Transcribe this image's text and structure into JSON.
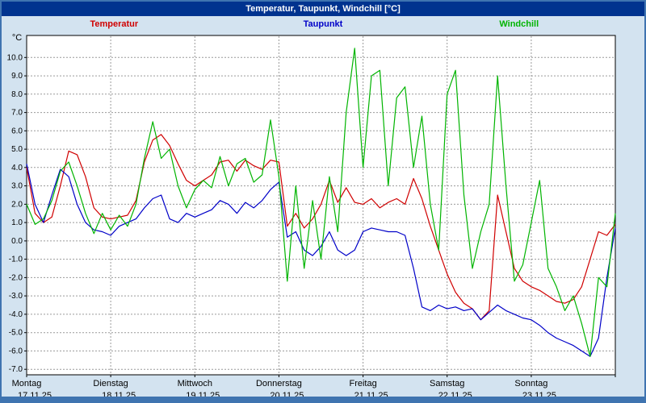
{
  "window": {
    "title": "Temperatur, Taupunkt, Windchill [°C]"
  },
  "legend": [
    {
      "label": "Temperatur",
      "color": "#d00000"
    },
    {
      "label": "Taupunkt",
      "color": "#0000c8"
    },
    {
      "label": "Windchill",
      "color": "#00b400"
    }
  ],
  "colors": {
    "titlebar_bg": "#00338f",
    "frame_blue": "#3f74b0",
    "page_bg": "#d3e3f0",
    "plot_bg": "#ffffff",
    "grid": "#9a9a9a"
  },
  "chart_data": {
    "type": "line",
    "title": "Temperatur, Taupunkt, Windchill [°C]",
    "xlabel": "",
    "ylabel": "°C",
    "ylim": [
      -7.3,
      11.2
    ],
    "yticks": [
      10,
      9,
      8,
      7,
      6,
      5,
      4,
      3,
      2,
      1,
      0,
      -1,
      -2,
      -3,
      -4,
      -5,
      -6,
      -7
    ],
    "grid": true,
    "legend_position": "top",
    "x_days": [
      {
        "name": "Montag",
        "date": "17.11.25"
      },
      {
        "name": "Dienstag",
        "date": "18.11.25"
      },
      {
        "name": "Mittwoch",
        "date": "19.11.25"
      },
      {
        "name": "Donnerstag",
        "date": "20.11.25"
      },
      {
        "name": "Freitag",
        "date": "21.11.25"
      },
      {
        "name": "Samstag",
        "date": "22.11.25"
      },
      {
        "name": "Sonntag",
        "date": "23.11.25"
      }
    ],
    "x_unit": "days",
    "x": [
      0,
      0.1,
      0.2,
      0.3,
      0.4,
      0.5,
      0.6,
      0.7,
      0.8,
      0.9,
      1.0,
      1.1,
      1.2,
      1.3,
      1.4,
      1.5,
      1.6,
      1.7,
      1.8,
      1.9,
      2.0,
      2.1,
      2.2,
      2.3,
      2.4,
      2.5,
      2.6,
      2.7,
      2.8,
      2.9,
      3.0,
      3.1,
      3.2,
      3.3,
      3.4,
      3.5,
      3.6,
      3.7,
      3.8,
      3.9,
      4.0,
      4.1,
      4.2,
      4.3,
      4.4,
      4.5,
      4.6,
      4.7,
      4.8,
      4.9,
      5.0,
      5.1,
      5.2,
      5.3,
      5.4,
      5.5,
      5.6,
      5.7,
      5.8,
      5.9,
      6.0,
      6.1,
      6.2,
      6.3,
      6.4,
      6.5,
      6.6,
      6.7,
      6.8,
      6.9,
      7.0
    ],
    "series": [
      {
        "name": "Temperatur",
        "color": "#d00000",
        "values": [
          4.0,
          1.5,
          1.0,
          1.3,
          3.0,
          4.9,
          4.7,
          3.5,
          1.8,
          1.3,
          1.2,
          1.3,
          1.4,
          2.2,
          4.3,
          5.5,
          5.8,
          5.2,
          4.2,
          3.3,
          3.0,
          3.3,
          3.6,
          4.3,
          4.4,
          3.8,
          4.4,
          4.1,
          3.9,
          4.4,
          4.3,
          0.8,
          1.5,
          0.7,
          1.2,
          2.0,
          3.3,
          2.1,
          2.9,
          2.1,
          2.0,
          2.3,
          1.8,
          2.1,
          2.3,
          2.0,
          3.4,
          2.3,
          0.8,
          -0.5,
          -1.8,
          -2.8,
          -3.4,
          -3.7,
          -4.3,
          -3.8,
          2.5,
          0.5,
          -1.5,
          -2.2,
          -2.5,
          -2.7,
          -3.0,
          -3.3,
          -3.4,
          -3.2,
          -2.5,
          -1.0,
          0.5,
          0.3,
          0.9
        ]
      },
      {
        "name": "Taupunkt",
        "color": "#0000c8",
        "values": [
          4.2,
          2.0,
          1.0,
          2.5,
          3.9,
          3.5,
          2.0,
          1.0,
          0.6,
          0.5,
          0.3,
          0.8,
          1.0,
          1.2,
          1.8,
          2.3,
          2.5,
          1.2,
          1.0,
          1.5,
          1.3,
          1.5,
          1.7,
          2.2,
          2.0,
          1.5,
          2.1,
          1.8,
          2.2,
          2.8,
          3.2,
          0.2,
          0.5,
          -0.5,
          -0.8,
          -0.3,
          0.5,
          -0.5,
          -0.8,
          -0.5,
          0.5,
          0.7,
          0.6,
          0.5,
          0.5,
          0.3,
          -1.5,
          -3.6,
          -3.8,
          -3.5,
          -3.7,
          -3.6,
          -3.8,
          -3.7,
          -4.3,
          -3.9,
          -3.5,
          -3.8,
          -4.0,
          -4.2,
          -4.3,
          -4.6,
          -5.0,
          -5.3,
          -5.5,
          -5.7,
          -6.0,
          -6.3,
          -5.3,
          -2.0,
          0.7
        ]
      },
      {
        "name": "Windchill",
        "color": "#00b400",
        "values": [
          2.0,
          0.9,
          1.2,
          2.2,
          3.8,
          4.3,
          3.0,
          1.5,
          0.4,
          1.5,
          0.6,
          1.4,
          0.8,
          2.0,
          4.5,
          6.5,
          4.5,
          5.0,
          3.0,
          1.8,
          2.8,
          3.3,
          2.9,
          4.6,
          3.0,
          4.2,
          4.5,
          3.2,
          3.6,
          6.6,
          3.5,
          -2.2,
          3.0,
          -1.5,
          2.2,
          -1.0,
          3.5,
          0.5,
          7.0,
          10.5,
          4.0,
          9.0,
          9.3,
          3.0,
          7.8,
          8.4,
          4.0,
          6.8,
          2.0,
          -0.5,
          8.0,
          9.3,
          2.5,
          -1.5,
          0.5,
          2.0,
          9.0,
          3.0,
          -2.2,
          -1.3,
          1.0,
          3.3,
          -1.5,
          -2.5,
          -3.8,
          -3.0,
          -4.5,
          -6.3,
          -2.0,
          -2.5,
          1.5
        ]
      }
    ]
  }
}
